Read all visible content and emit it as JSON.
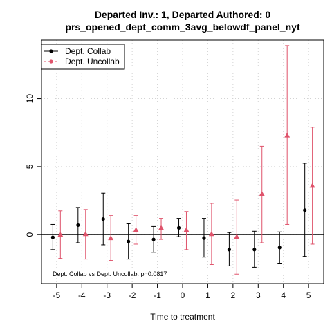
{
  "chart_data": {
    "type": "scatter",
    "title": "Departed Inv.: 1, Departed Authored: 0",
    "subtitle": "prs_opened_dept_comm_3avg_belowdf_panel_nyt",
    "xlabel": "Time to treatment",
    "ylabel": "",
    "x_ticks": [
      -5,
      -4,
      -3,
      -2,
      -1,
      0,
      1,
      2,
      3,
      4,
      5
    ],
    "y_ticks": [
      0,
      5,
      10
    ],
    "xlim": [
      -5.6,
      5.6
    ],
    "ylim": [
      -3.6,
      14.3
    ],
    "grid": true,
    "legend_position": "top-left",
    "annotation": "Dept. Collab vs Dept. Uncollab: p=0.0817",
    "series": [
      {
        "name": "Dept. Collab",
        "color": "#000000",
        "marker": "circle",
        "line_style": "solid",
        "offset": -0.15,
        "x": [
          -5,
          -4,
          -3,
          -2,
          -1,
          0,
          1,
          2,
          3,
          4,
          5
        ],
        "y": [
          -0.2,
          0.7,
          1.15,
          -0.5,
          -0.35,
          0.5,
          -0.25,
          -1.1,
          -1.1,
          -0.95,
          1.8
        ],
        "ci_low": [
          -1.1,
          -0.6,
          -0.75,
          -1.8,
          -1.3,
          -0.15,
          -1.65,
          -2.3,
          -2.4,
          -2.1,
          -1.6
        ],
        "ci_high": [
          0.75,
          2.0,
          3.05,
          0.8,
          0.6,
          1.2,
          1.2,
          0.15,
          0.25,
          0.2,
          5.25
        ]
      },
      {
        "name": "Dept. Uncollab",
        "color": "#DF536B",
        "marker": "triangle",
        "line_style": "dashed",
        "offset": 0.15,
        "x": [
          -5,
          -4,
          -3,
          -2,
          -1,
          0,
          1,
          2,
          3,
          4,
          5
        ],
        "y": [
          0.0,
          0.05,
          -0.25,
          0.35,
          0.5,
          0.35,
          0.05,
          -0.15,
          3.0,
          7.3,
          3.6
        ],
        "ci_low": [
          -1.75,
          -1.8,
          -1.9,
          -0.7,
          -0.35,
          -1.1,
          -2.2,
          -2.9,
          -0.6,
          0.75,
          -0.7
        ],
        "ci_high": [
          1.75,
          1.85,
          1.4,
          1.4,
          1.2,
          1.7,
          2.3,
          2.55,
          6.5,
          13.9,
          7.9
        ]
      }
    ]
  }
}
